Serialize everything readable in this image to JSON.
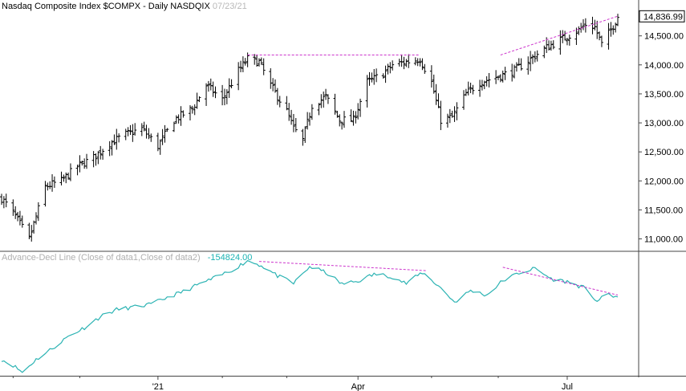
{
  "header": {
    "price_title": "Nasdaq Composite Index  $COMPX - Daily  NASDQIX",
    "price_date": "07/23/21",
    "indicator_title": "Advance-Decl Line (Close of data1,Close of data2)",
    "indicator_value": "-154824.00"
  },
  "colors": {
    "price_bars": "#000000",
    "ad_line": "#2bb3b3",
    "trendline": "#cc33cc",
    "axis": "#444444"
  },
  "chart_data": [
    {
      "type": "line",
      "chart_style": "ohlc-bars",
      "title": "Nasdaq Composite Index  $COMPX - Daily  NASDQIX",
      "last_value_label": "14,836.99",
      "y_ticks": [
        11000,
        11500,
        12000,
        12500,
        13000,
        13500,
        14000,
        14500
      ],
      "y_tick_labels": [
        "11,000.00",
        "11,500.00",
        "12,000.00",
        "12,500.00",
        "13,000.00",
        "13,500.00",
        "14,000.00",
        "14,500.00"
      ],
      "ylim": [
        10800,
        14980
      ],
      "x_tick_labels": [
        "'21",
        "Apr",
        "Jul"
      ],
      "x_tick_dates": [
        "2021-01-04",
        "2021-04-01",
        "2021-07-01"
      ],
      "xlim": [
        "2020-10-28",
        "2021-07-23"
      ],
      "grid": false,
      "series": [
        {
          "x": [
            "2020-10-28",
            "2020-11-02",
            "2020-11-09",
            "2020-11-16",
            "2020-11-23",
            "2020-11-30",
            "2020-12-07",
            "2020-12-14",
            "2020-12-21",
            "2020-12-28",
            "2021-01-04",
            "2021-01-11",
            "2021-01-19",
            "2021-01-25",
            "2021-02-01",
            "2021-02-08",
            "2021-02-12",
            "2021-02-17",
            "2021-02-22",
            "2021-03-01",
            "2021-03-04",
            "2021-03-08",
            "2021-03-12",
            "2021-03-18",
            "2021-03-24",
            "2021-03-30",
            "2021-04-05",
            "2021-04-12",
            "2021-04-16",
            "2021-04-22",
            "2021-04-28",
            "2021-05-03",
            "2021-05-07",
            "2021-05-12",
            "2021-05-18",
            "2021-05-24",
            "2021-06-01",
            "2021-06-08",
            "2021-06-15",
            "2021-06-22",
            "2021-06-29",
            "2021-07-06",
            "2021-07-09",
            "2021-07-13",
            "2021-07-16",
            "2021-07-20",
            "2021-07-23"
          ],
          "values": [
            11700,
            11450,
            11000,
            11900,
            12000,
            12250,
            12400,
            12650,
            12800,
            12900,
            12600,
            13050,
            13250,
            13650,
            13400,
            13900,
            14100,
            14050,
            13650,
            13200,
            12900,
            12700,
            13300,
            13450,
            13050,
            13050,
            13700,
            13850,
            14000,
            14050,
            14100,
            13700,
            13050,
            13100,
            13500,
            13700,
            13800,
            13900,
            14100,
            14300,
            14450,
            14600,
            14700,
            14650,
            14350,
            14600,
            14837
          ]
        }
      ],
      "trendlines": [
        {
          "x": [
            "2021-02-12",
            "2021-04-28"
          ],
          "y": [
            14170,
            14170
          ]
        },
        {
          "x": [
            "2021-06-02",
            "2021-07-23"
          ],
          "y": [
            14170,
            14840
          ]
        }
      ]
    },
    {
      "type": "line",
      "title": "Advance-Decl Line (Close of data1,Close of data2)",
      "last_value_label": "-154824.00",
      "x_tick_labels": [
        "'21",
        "Apr",
        "Jul"
      ],
      "x_tick_dates": [
        "2021-01-04",
        "2021-04-01",
        "2021-07-01"
      ],
      "xlim": [
        "2020-10-28",
        "2021-07-23"
      ],
      "ylim": [
        -290000,
        -88000
      ],
      "grid": false,
      "series": [
        {
          "x": [
            "2020-10-28",
            "2020-11-02",
            "2020-11-06",
            "2020-11-12",
            "2020-11-19",
            "2020-11-26",
            "2020-12-03",
            "2020-12-10",
            "2020-12-17",
            "2020-12-24",
            "2021-01-01",
            "2021-01-08",
            "2021-01-15",
            "2021-01-22",
            "2021-01-29",
            "2021-02-05",
            "2021-02-12",
            "2021-02-18",
            "2021-02-25",
            "2021-03-04",
            "2021-03-11",
            "2021-03-18",
            "2021-03-25",
            "2021-04-01",
            "2021-04-08",
            "2021-04-15",
            "2021-04-22",
            "2021-04-29",
            "2021-05-06",
            "2021-05-13",
            "2021-05-20",
            "2021-05-27",
            "2021-06-03",
            "2021-06-10",
            "2021-06-17",
            "2021-06-24",
            "2021-07-01",
            "2021-07-08",
            "2021-07-14",
            "2021-07-19",
            "2021-07-23"
          ],
          "values": [
            -262000,
            -272000,
            -284000,
            -262000,
            -243000,
            -222000,
            -207000,
            -188000,
            -176000,
            -172000,
            -167000,
            -155000,
            -145000,
            -132000,
            -121000,
            -108000,
            -92000,
            -100000,
            -118000,
            -131000,
            -102000,
            -112000,
            -132000,
            -127000,
            -115000,
            -118000,
            -131000,
            -112000,
            -135000,
            -163000,
            -143000,
            -151000,
            -126000,
            -113000,
            -105000,
            -123000,
            -128000,
            -138000,
            -161000,
            -150000,
            -154824
          ]
        }
      ],
      "trendlines": [
        {
          "x": [
            "2021-02-17",
            "2021-05-01"
          ],
          "y": [
            -93000,
            -109000
          ]
        },
        {
          "x": [
            "2021-06-03",
            "2021-07-23"
          ],
          "y": [
            -103000,
            -151000
          ]
        }
      ]
    }
  ]
}
